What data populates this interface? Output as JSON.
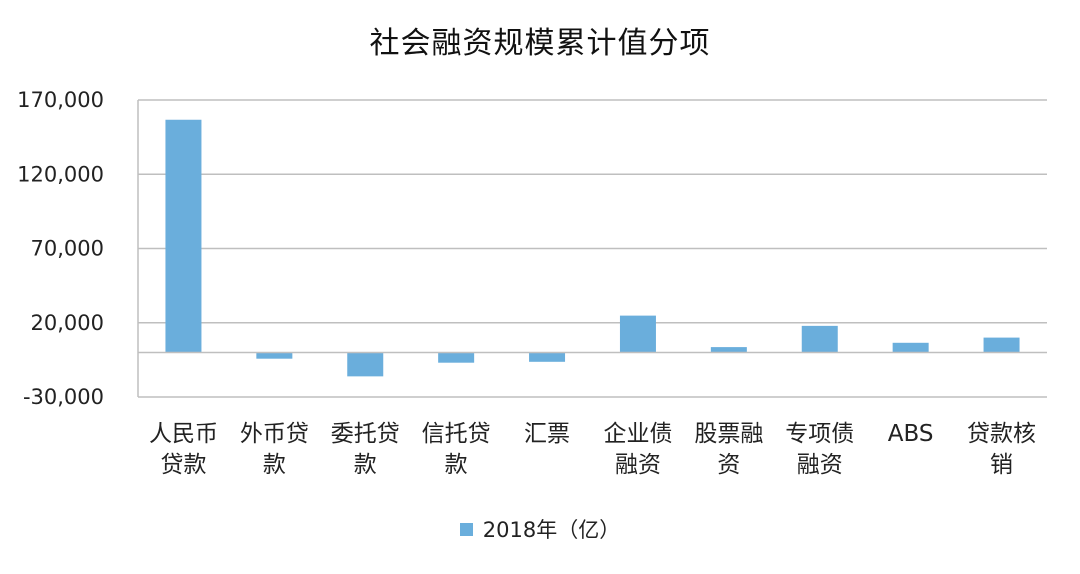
{
  "chart_data": {
    "type": "bar",
    "title": "社会融资规模累计值分项",
    "categories": [
      [
        "人民币",
        "贷款"
      ],
      [
        "外币贷",
        "款"
      ],
      [
        "委托贷",
        "款"
      ],
      [
        "信托贷",
        "款"
      ],
      [
        "汇票"
      ],
      [
        "企业债",
        "融资"
      ],
      [
        "股票融",
        "资"
      ],
      [
        "专项债",
        "融资"
      ],
      [
        "ABS"
      ],
      [
        "贷款核",
        "销"
      ]
    ],
    "series": [
      {
        "name": "2018年（亿）",
        "color": "#6aaedc",
        "values": [
          156700,
          -4200,
          -16100,
          -6900,
          -6300,
          24800,
          3600,
          17900,
          6500,
          10000
        ]
      }
    ],
    "ylim": [
      -30000,
      170000
    ],
    "yticks": [
      -30000,
      20000,
      70000,
      120000,
      170000
    ],
    "ytick_labels": [
      "-30,000",
      "20,000",
      "70,000",
      "120,000",
      "170,000"
    ],
    "grid": true,
    "legend": "bottom-center"
  }
}
